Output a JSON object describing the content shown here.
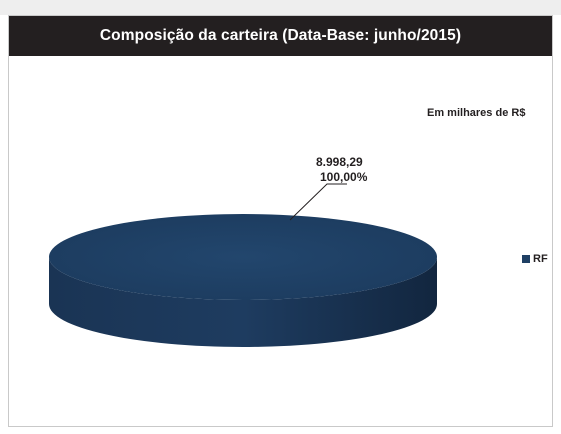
{
  "chart_data": {
    "type": "pie",
    "title": "Composição da carteira (Data-Base: junho/2015)",
    "unit_note": "Em milhares de R$",
    "slices": [
      {
        "label": "RF",
        "value": "8.998,29",
        "percent": "100,00%",
        "color": "#1f4064"
      }
    ],
    "legend": {
      "placement": "right",
      "entries": [
        "RF"
      ]
    },
    "style": "3d"
  }
}
